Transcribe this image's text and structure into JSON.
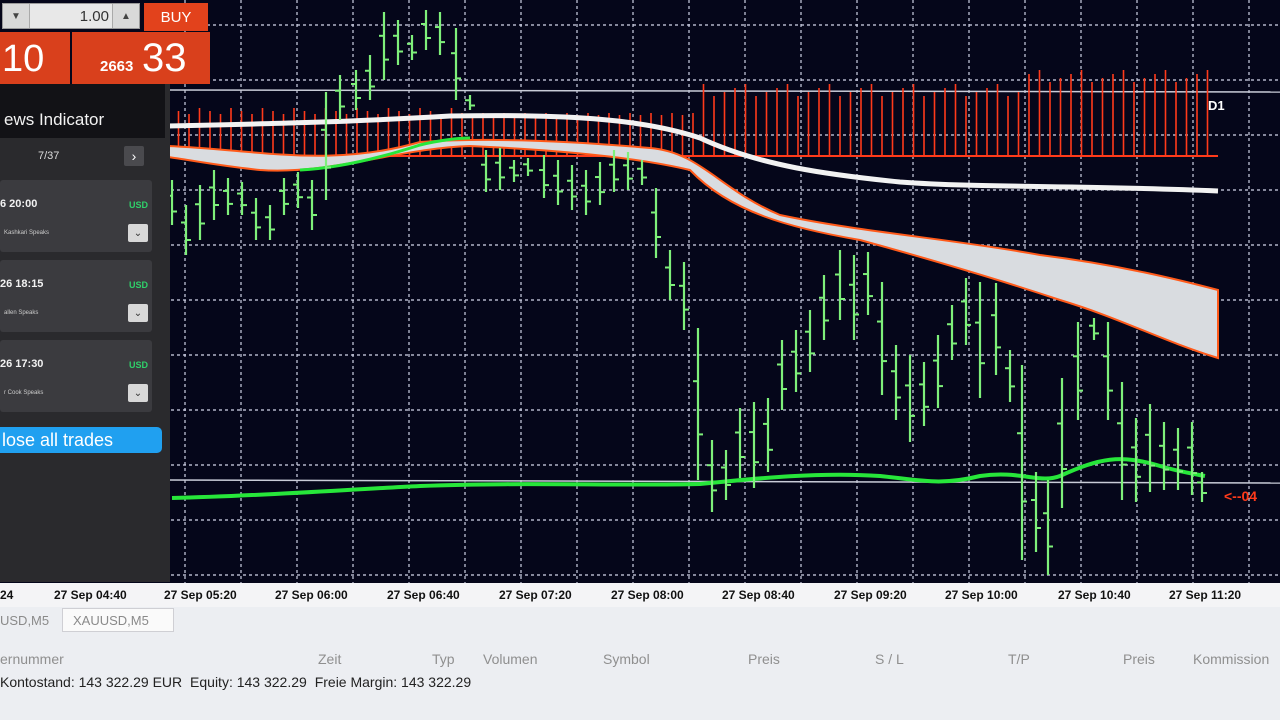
{
  "trade_panel": {
    "volume": "1.00",
    "buy_label": "BUY",
    "sell_price_tail": "10",
    "buy_price_prefix": "2663",
    "buy_price_tail": "33"
  },
  "news_panel": {
    "title": "ews Indicator",
    "pager": "7/37",
    "next_glyph": "›",
    "items": [
      {
        "time": "6 20:00",
        "currency": "USD",
        "description": "Kashkari Speaks",
        "expand_glyph": "⌄"
      },
      {
        "time": "26 18:15",
        "currency": "USD",
        "description": "allen Speaks",
        "expand_glyph": "⌄"
      },
      {
        "time": "26 17:30",
        "currency": "USD",
        "description": "r Cook Speaks",
        "expand_glyph": "⌄"
      }
    ],
    "close_all_label": "lose all trades"
  },
  "chart": {
    "timeframe": "D1",
    "price_marker": "<--04",
    "colors": {
      "background": "#05061a",
      "grid": "#cfd3e6",
      "bars": "#7ef07a",
      "ma_bright_green": "#27e63a",
      "ma_white": "#f2f2f2",
      "histogram_red": "#ff3a1a",
      "band_fill": "#d9dce0",
      "band_edge": "#ff5a1a"
    },
    "time_axis": [
      "24",
      "27 Sep 04:40",
      "27 Sep 05:20",
      "27 Sep 06:00",
      "27 Sep 06:40",
      "27 Sep 07:20",
      "27 Sep 08:00",
      "27 Sep 08:40",
      "27 Sep 09:20",
      "27 Sep 10:00",
      "27 Sep 10:40",
      "27 Sep 11:20"
    ]
  },
  "terminal": {
    "tabs": [
      {
        "label": "USD,M5"
      },
      {
        "label": "XAUUSD,M5"
      }
    ],
    "columns": [
      "ernummer",
      "Zeit",
      "Typ",
      "Volumen",
      "Symbol",
      "Preis",
      "S / L",
      "T/P",
      "Preis",
      "Kommission"
    ],
    "account": {
      "balance": "Kontostand: 143 322.29 EUR",
      "equity": "Equity: 143 322.29",
      "free_margin": "Freie Margin: 143 322.29"
    }
  }
}
